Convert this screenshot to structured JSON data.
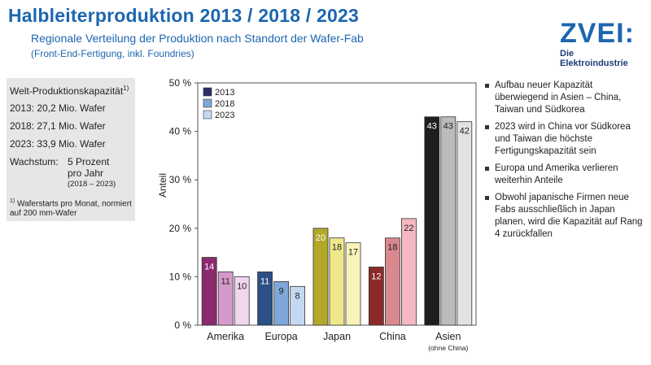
{
  "header": {
    "title": "Halbleiterproduktion 2013 / 2018 / 2023",
    "subtitle": "Regionale Verteilung der Produktion nach Standort der Wafer-Fab",
    "note": "(Front-End-Fertigung, inkl. Foundries)"
  },
  "logo": {
    "main": "ZVEI:",
    "sub": "Die Elektroindustrie"
  },
  "capacity": {
    "heading": "Welt-Produktionskapazität",
    "heading_sup": "1)",
    "lines": [
      "2013: 20,2 Mio. Wafer",
      "2018: 27,1 Mio. Wafer",
      "2023: 33,9 Mio. Wafer"
    ],
    "growth_label": "Wachstum:",
    "growth_value_1": "5 Prozent",
    "growth_value_2": "pro Jahr",
    "growth_period": "(2018 – 2023)",
    "footnote_mark": "1)",
    "footnote": "Waferstarts pro Monat, normiert auf 200 mm-Wafer"
  },
  "bullets": [
    "Aufbau neuer Kapazität überwiegend in Asien – China, Taiwan und Südkorea",
    "2023 wird in China vor Südkorea und Taiwan die höchste Fertigungskapazität sein",
    "Europa und Amerika verlieren weiterhin Anteile",
    "Obwohl japanische Firmen neue Fabs ausschließlich in Japan planen, wird die Kapazität auf Rang 4 zurückfallen"
  ],
  "chart_data": {
    "type": "bar",
    "title": "",
    "xlabel": "",
    "ylabel": "Anteil",
    "ylim": [
      0,
      50
    ],
    "yticks": [
      0,
      10,
      20,
      30,
      40,
      50
    ],
    "ytick_labels": [
      "0 %",
      "10 %",
      "20 %",
      "30 %",
      "40 %",
      "50 %"
    ],
    "categories": [
      "Amerika",
      "Europa",
      "Japan",
      "China",
      "Asien"
    ],
    "category_sublabels": [
      "",
      "",
      "",
      "",
      "(ohne China)"
    ],
    "legend_position": "top-left",
    "series": [
      {
        "name": "2013",
        "values": [
          14,
          11,
          20,
          12,
          43
        ]
      },
      {
        "name": "2018",
        "values": [
          11,
          9,
          18,
          18,
          43
        ]
      },
      {
        "name": "2023",
        "values": [
          10,
          8,
          17,
          22,
          42
        ]
      }
    ],
    "colors": {
      "Amerika": [
        "#8b2a6e",
        "#d59ac9",
        "#f2d6ee"
      ],
      "Europa": [
        "#2c4f86",
        "#7fa7d8",
        "#c4d9f1"
      ],
      "Japan": [
        "#b3a82a",
        "#efe88a",
        "#f8f3b9"
      ],
      "China": [
        "#8b2a2a",
        "#d9898e",
        "#f4b8c0"
      ],
      "Asien": [
        "#1e1e1e",
        "#bcbcbc",
        "#e2e2e2"
      ]
    },
    "legend_colors": [
      "#2d2d6a",
      "#7fa7d8",
      "#c4d9f1"
    ],
    "label_colors": [
      "#ffffff",
      "#222222",
      "#222222"
    ]
  }
}
